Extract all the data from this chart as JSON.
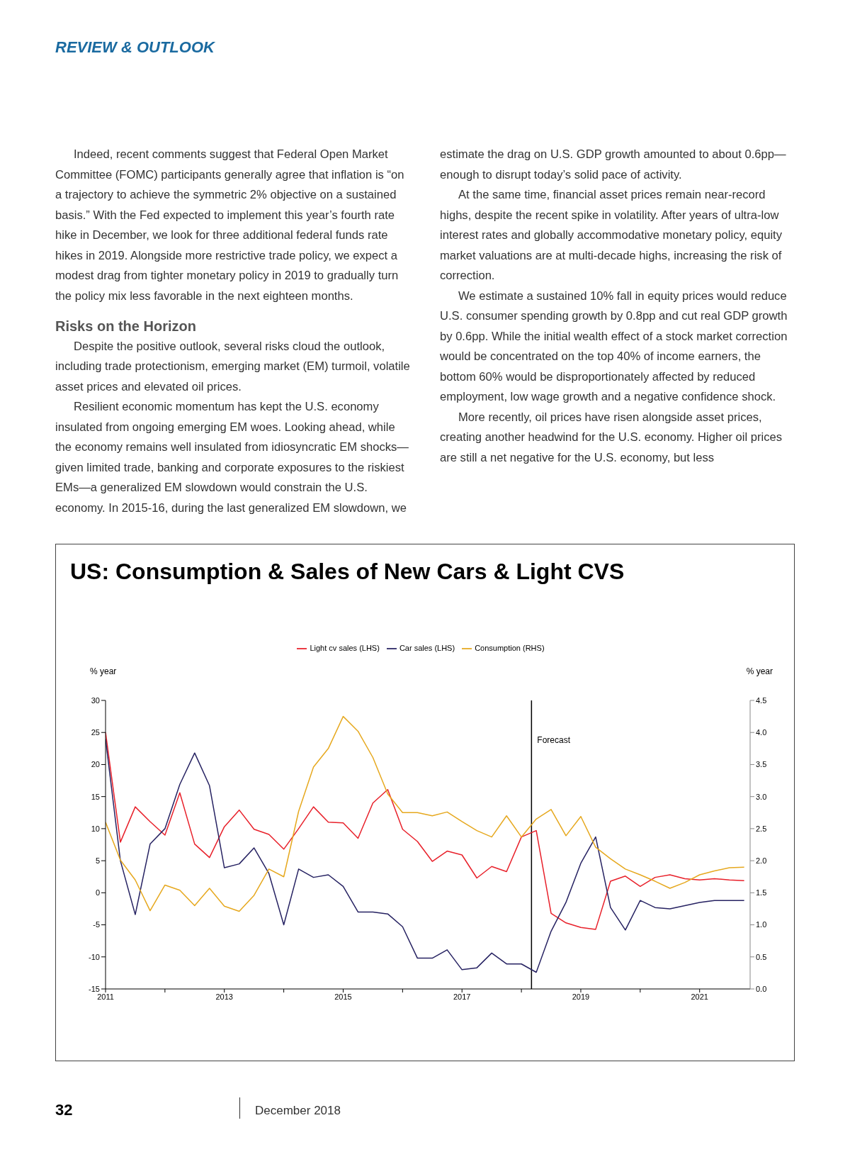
{
  "chart_data": {
    "type": "line",
    "title": "US: Consumption & Sales of New Cars & Light CVS",
    "ylabel": "% year",
    "y2label": "% year",
    "annotations": [
      "REVIEW & OUTLOOK",
      "Indeed, recent comments suggest that Federal Open Market Committee (FOMC) participants generally agree that inflation is “on a trajectory to achieve the symmetric 2% objective on a sustained basis.” With the Fed expected to implement this year’s fourth rate hike in December, we look for three additional federal funds rate hikes in 2019. Alongside more restrictive trade policy, we expect a modest drag from tighter monetary policy in 2019 to gradually turn the policy mix less favorable in the next eighteen months.",
      "Risks on the Horizon",
      "Despite the positive outlook, several risks cloud the outlook, including trade protectionism, emerging market (EM) turmoil, volatile asset prices and elevated oil prices.",
      "Resilient economic momentum has kept the U.S. economy insulated from ongoing emerging EM woes. Looking ahead, while the economy remains well insulated from idiosyncratic EM shocks—given limited trade, banking and corporate exposures to the riskiest EMs—a generalized EM slowdown would constrain the U.S. economy. In 2015-16, during the last generalized EM slowdown, we estimate the drag on U.S. GDP growth amounted to about 0.6pp—enough to disrupt today’s solid pace of activity.",
      "At the same time, financial asset prices remain near-record highs, despite the recent spike in volatility. After years of ultra-low interest rates and globally accommodative monetary policy, equity market valuations are at multi-decade highs, increasing the risk of correction.",
      "We estimate a sustained 10% fall in equity prices would reduce U.S. consumer spending growth by 0.8pp and cut real GDP growth by 0.6pp. While the initial wealth effect of a stock market correction would be concentrated on the top 40% of income earners, the bottom 60% would be disproportionately affected by reduced employment, low wage growth and a negative confidence shock.",
      "More recently, oil prices have risen alongside asset prices, creating another headwind for the U.S. economy. Higher oil prices are still a net negative for the U.S. economy, but less",
      "32",
      "December 2018"
    ],
    "x": [
      2011,
      2011.25,
      2011.5,
      2011.75,
      2012,
      2012.25,
      2012.5,
      2012.75,
      2013,
      2013.25,
      2013.5,
      2013.75,
      2014,
      2014.25,
      2014.5,
      2014.75,
      2015,
      2015.25,
      2015.5,
      2015.75,
      2016,
      2016.25,
      2016.5,
      2016.75,
      2017,
      2017.25,
      2017.5,
      2017.75,
      2018,
      2018.25,
      2018.5,
      2018.75,
      2019,
      2019.25,
      2019.5,
      2019.75,
      2020,
      2020.25,
      2020.5,
      2020.75,
      2021,
      2021.25,
      2021.5,
      2021.75
    ],
    "series": [
      {
        "name": "Light cv sales (LHS)",
        "color": "#e8202a",
        "values": [
          25.0,
          7.9,
          13.4,
          11.1,
          9.0,
          15.6,
          7.6,
          5.5,
          10.3,
          12.9,
          9.9,
          9.1,
          6.8,
          10.0,
          13.4,
          11.0,
          10.9,
          8.5,
          14.0,
          16.1,
          9.9,
          8.0,
          4.9,
          6.5,
          5.9,
          2.3,
          4.1,
          3.3,
          8.7,
          9.7,
          -3.2,
          -4.7,
          -5.4,
          -5.7,
          1.8,
          2.6,
          1.0,
          2.4,
          2.8,
          2.2,
          2.0,
          2.2,
          2.0,
          1.9
        ]
      },
      {
        "name": "Car sales (LHS)",
        "color": "#262262",
        "values": [
          24.0,
          5.0,
          -3.4,
          7.6,
          10.0,
          16.9,
          21.8,
          16.7,
          3.9,
          4.5,
          7.0,
          3.0,
          -5.0,
          3.7,
          2.4,
          2.8,
          1.0,
          -3.0,
          -3.0,
          -3.3,
          -5.3,
          -10.2,
          -10.2,
          -8.9,
          -12.0,
          -11.7,
          -9.4,
          -11.1,
          -11.1,
          -12.4,
          -6.0,
          -1.5,
          4.6,
          8.7,
          -2.3,
          -5.8,
          -1.2,
          -2.3,
          -2.5,
          -2.0,
          -1.5,
          -1.2,
          -1.2,
          -1.2
        ]
      },
      {
        "name": "Consumption (RHS)",
        "color": "#e6a81e",
        "axis": "y2",
        "values": [
          2.6,
          2.01,
          1.7,
          1.22,
          1.62,
          1.54,
          1.3,
          1.57,
          1.29,
          1.21,
          1.46,
          1.87,
          1.75,
          2.77,
          3.46,
          3.75,
          4.25,
          4.02,
          3.61,
          3.04,
          2.75,
          2.75,
          2.7,
          2.76,
          2.61,
          2.47,
          2.37,
          2.7,
          2.37,
          2.65,
          2.8,
          2.39,
          2.69,
          2.21,
          2.03,
          1.87,
          1.78,
          1.68,
          1.57,
          1.66,
          1.78,
          1.84,
          1.89,
          1.9
        ]
      }
    ],
    "xlim": [
      2011,
      2021.85
    ],
    "xticks": [
      2011,
      {
        "value": 2012,
        "label": null
      },
      2013,
      {
        "value": 2014,
        "label": null
      },
      2015,
      {
        "value": 2016,
        "label": null
      },
      2017,
      {
        "value": 2018,
        "label": null
      },
      2019,
      {
        "value": 2020,
        "label": null
      },
      2021
    ],
    "ylim": [
      -15,
      30
    ],
    "yticks": [
      -15,
      -10,
      -5,
      0,
      5,
      10,
      15,
      20,
      25,
      30
    ],
    "y2lim": [
      0,
      4.5
    ],
    "y2ticks": [
      {
        "value": 0,
        "label": "0.0"
      },
      0.5,
      {
        "value": 1,
        "label": "1.0"
      },
      1.5,
      {
        "value": 2,
        "label": "2.0"
      },
      2.5,
      {
        "value": 3,
        "label": "3.0"
      },
      3.5,
      {
        "value": 4,
        "label": "4.0"
      },
      4.5
    ],
    "ref_lines": [
      {
        "axis": "x",
        "value": 2018.17,
        "label": "Forecast",
        "color": "#000000"
      }
    ],
    "legend": "top",
    "grid": false,
    "marker": "none",
    "line_style": "solid"
  }
}
